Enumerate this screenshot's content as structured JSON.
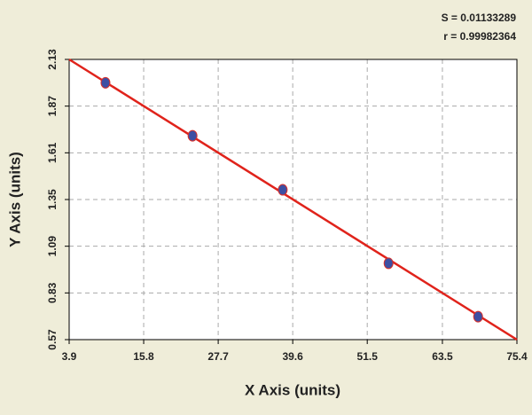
{
  "chart_data": {
    "type": "scatter",
    "xlabel": "X Axis (units)",
    "ylabel": "Y Axis (units)",
    "annotations": [
      "S = 0.01133289",
      "r = 0.99982364"
    ],
    "points": {
      "x": [
        9.7,
        23.6,
        38.0,
        54.9,
        69.2
      ],
      "y": [
        2.0,
        1.705,
        1.404,
        0.995,
        0.698
      ],
      "color": "#3d4fa3",
      "edge_color": "#d9302a"
    },
    "fit_line": {
      "x": [
        3.9,
        75.4
      ],
      "y": [
        2.13,
        0.57
      ],
      "color": "#e0231b"
    },
    "xlim": [
      3.9,
      75.4
    ],
    "xticks": [
      3.9,
      15.8,
      27.7,
      39.6,
      51.5,
      63.5,
      75.4
    ],
    "ylim": [
      0.57,
      2.13
    ],
    "yticks": [
      0.57,
      0.83,
      1.09,
      1.35,
      1.61,
      1.87,
      2.13
    ],
    "grid": true
  }
}
